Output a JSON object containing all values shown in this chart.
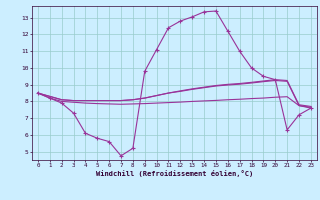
{
  "xlabel": "Windchill (Refroidissement éolien,°C)",
  "x_hours": [
    0,
    1,
    2,
    3,
    4,
    5,
    6,
    7,
    8,
    9,
    10,
    11,
    12,
    13,
    14,
    15,
    16,
    17,
    18,
    19,
    20,
    21,
    22,
    23
  ],
  "temp_line": [
    8.5,
    8.2,
    7.9,
    7.3,
    6.1,
    5.8,
    5.6,
    4.75,
    5.2,
    9.8,
    11.1,
    12.4,
    12.8,
    13.05,
    13.35,
    13.4,
    12.2,
    11.0,
    10.0,
    9.5,
    9.3,
    6.3,
    7.2,
    7.6
  ],
  "flat_line1": [
    8.5,
    8.2,
    8.0,
    7.95,
    7.9,
    7.87,
    7.85,
    7.83,
    7.85,
    7.87,
    7.9,
    7.93,
    7.96,
    8.0,
    8.03,
    8.06,
    8.1,
    8.13,
    8.17,
    8.2,
    8.25,
    8.28,
    7.75,
    7.6
  ],
  "slope_line1": [
    8.5,
    8.3,
    8.1,
    8.05,
    8.05,
    8.05,
    8.05,
    8.05,
    8.1,
    8.2,
    8.35,
    8.5,
    8.6,
    8.72,
    8.82,
    8.92,
    8.98,
    9.03,
    9.1,
    9.18,
    9.25,
    9.2,
    7.75,
    7.65
  ],
  "slope_line2": [
    8.5,
    8.3,
    8.1,
    8.05,
    8.05,
    8.05,
    8.05,
    8.05,
    8.1,
    8.2,
    8.35,
    8.5,
    8.63,
    8.75,
    8.85,
    8.95,
    9.02,
    9.07,
    9.14,
    9.22,
    9.3,
    9.25,
    7.8,
    7.7
  ],
  "line_color": "#993399",
  "bg_color": "#cceeff",
  "grid_color": "#99cccc",
  "ylim_min": 4.5,
  "ylim_max": 13.7,
  "yticks": [
    5,
    6,
    7,
    8,
    9,
    10,
    11,
    12,
    13
  ],
  "xticks": [
    0,
    1,
    2,
    3,
    4,
    5,
    6,
    7,
    8,
    9,
    10,
    11,
    12,
    13,
    14,
    15,
    16,
    17,
    18,
    19,
    20,
    21,
    22,
    23
  ]
}
